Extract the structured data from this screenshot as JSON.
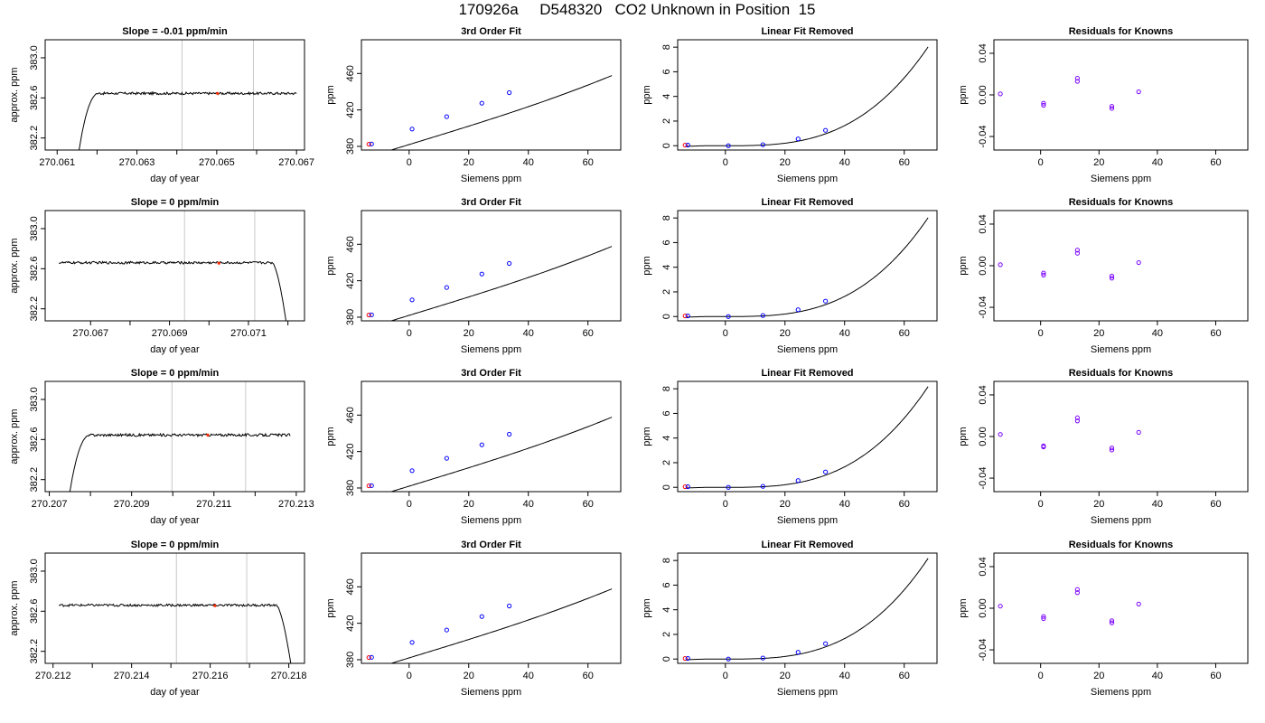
{
  "page_title": "170926a     D548320   CO2 Unknown in Position  15",
  "colors": {
    "line": "#000000",
    "grid": "#c8c8c8",
    "unknown": "#ff2a00",
    "std_a": "#0000ff",
    "std_b": "#ff0000",
    "resid": "#7a00ff"
  },
  "chart_data": [
    {
      "type": "line",
      "row": 0,
      "col": 0,
      "title": "Slope =  -0.01  ppm/min",
      "xlabel": "day of year",
      "ylabel": "approx. ppm",
      "xlim": [
        270.0607,
        270.0672
      ],
      "ylim": [
        382.08,
        383.18
      ],
      "xticks": [
        270.061,
        270.063,
        270.065,
        270.067
      ],
      "xtick_labels": [
        "270.061",
        "270.063",
        "270.065",
        "270.067"
      ],
      "xticks_minor": [
        270.062,
        270.064,
        270.066
      ],
      "yticks": [
        382.2,
        382.6,
        383.0
      ],
      "ytick_labels": [
        "382.2",
        "382.6",
        "383.0"
      ],
      "vlines": [
        270.06413,
        270.06592
      ],
      "trace": {
        "start": 270.06155,
        "rise_end": 270.06205,
        "end": 270.067,
        "start_val": 382.08,
        "level": 382.645,
        "noise": 0.012,
        "tail": "rise"
      },
      "highlight_point": {
        "x": 270.06502,
        "y": 382.645
      }
    },
    {
      "type": "line",
      "row": 1,
      "col": 0,
      "title": "Slope =  0  ppm/min",
      "xlabel": "day of year",
      "ylabel": "approx. ppm",
      "xlim": [
        270.06585,
        270.07242
      ],
      "ylim": [
        382.08,
        383.18
      ],
      "xticks": [
        270.067,
        270.069,
        270.071
      ],
      "xtick_labels": [
        "270.067",
        "270.069",
        "270.071"
      ],
      "xticks_minor": [
        270.068,
        270.07,
        270.072
      ],
      "yticks": [
        382.2,
        382.6,
        383.0
      ],
      "ytick_labels": [
        "382.2",
        "382.6",
        "383.0"
      ],
      "vlines": [
        270.06938,
        270.07116
      ],
      "trace": {
        "start": 270.0662,
        "end": 270.07195,
        "fall_start": 270.0716,
        "end_val": 382.08,
        "level": 382.66,
        "noise": 0.012,
        "tail": "fall"
      },
      "highlight_point": {
        "x": 270.07025,
        "y": 382.655
      }
    },
    {
      "type": "line",
      "row": 2,
      "col": 0,
      "title": "Slope =  0  ppm/min",
      "xlabel": "day of year",
      "ylabel": "approx. ppm",
      "xlim": [
        270.2069,
        270.2132
      ],
      "ylim": [
        382.08,
        383.18
      ],
      "xticks": [
        270.207,
        270.209,
        270.211,
        270.213
      ],
      "xtick_labels": [
        "270.207",
        "270.209",
        "270.211",
        "270.213"
      ],
      "xticks_minor": [
        270.208,
        270.21,
        270.212
      ],
      "yticks": [
        382.2,
        382.6,
        383.0
      ],
      "ytick_labels": [
        "382.2",
        "382.6",
        "383.0"
      ],
      "vlines": [
        270.20998,
        270.21177
      ],
      "trace": {
        "start": 270.2075,
        "rise_end": 270.208,
        "end": 270.21285,
        "start_val": 382.08,
        "level": 382.645,
        "noise": 0.013,
        "tail": "rise"
      },
      "highlight_point": {
        "x": 270.21085,
        "y": 382.645
      }
    },
    {
      "type": "line",
      "row": 3,
      "col": 0,
      "title": "Slope =  0  ppm/min",
      "xlabel": "day of year",
      "ylabel": "approx. ppm",
      "xlim": [
        270.2118,
        270.2184
      ],
      "ylim": [
        382.08,
        383.18
      ],
      "xticks": [
        270.212,
        270.214,
        270.216,
        270.218
      ],
      "xtick_labels": [
        "270.212",
        "270.214",
        "270.216",
        "270.218"
      ],
      "xticks_minor": [
        270.213,
        270.215,
        270.217
      ],
      "yticks": [
        382.2,
        382.6,
        383.0
      ],
      "ytick_labels": [
        "382.2",
        "382.6",
        "383.0"
      ],
      "vlines": [
        270.21514,
        270.21693
      ],
      "trace": {
        "start": 270.21215,
        "end": 270.21805,
        "fall_start": 270.21768,
        "end_val": 382.08,
        "level": 382.66,
        "noise": 0.012,
        "tail": "fall"
      },
      "highlight_point": {
        "x": 270.21612,
        "y": 382.655
      }
    },
    {
      "type": "scatter",
      "row": 0,
      "col": 1,
      "title": "3rd Order Fit",
      "xlabel": "Siemens ppm",
      "ylabel": "ppm",
      "xlim": [
        -16,
        71
      ],
      "ylim": [
        376,
        497
      ],
      "xticks": [
        0,
        20,
        40,
        60
      ],
      "yticks": [
        380,
        420,
        460
      ],
      "curve": {
        "type": "cubic",
        "x0": -14,
        "x1": 68,
        "a": 382.0,
        "b": 1.0,
        "c": 0.0,
        "d": 2.45e-05
      },
      "points": [
        {
          "x": -13.5,
          "y": 382.4,
          "c": "std_b"
        },
        {
          "x": -12.6,
          "y": 382.6,
          "c": "std_a"
        },
        {
          "x": 1.0,
          "y": 399.0,
          "c": "std_a"
        },
        {
          "x": 12.6,
          "y": 412.6,
          "c": "std_a"
        },
        {
          "x": 24.4,
          "y": 427.4,
          "c": "std_a"
        },
        {
          "x": 33.6,
          "y": 439.0,
          "c": "std_a"
        }
      ]
    },
    {
      "type": "scatter",
      "row": 1,
      "col": 1,
      "title": "3rd Order Fit",
      "xlabel": "Siemens ppm",
      "ylabel": "ppm",
      "xlim": [
        -16,
        71
      ],
      "ylim": [
        376,
        497
      ],
      "xticks": [
        0,
        20,
        40,
        60
      ],
      "yticks": [
        380,
        420,
        460
      ],
      "curve": {
        "type": "cubic",
        "x0": -14,
        "x1": 68,
        "a": 382.0,
        "b": 1.0,
        "c": 0.0,
        "d": 2.45e-05
      },
      "points": [
        {
          "x": -13.5,
          "y": 382.4,
          "c": "std_b"
        },
        {
          "x": -12.6,
          "y": 382.6,
          "c": "std_a"
        },
        {
          "x": 1.0,
          "y": 399.0,
          "c": "std_a"
        },
        {
          "x": 12.6,
          "y": 412.6,
          "c": "std_a"
        },
        {
          "x": 24.4,
          "y": 427.4,
          "c": "std_a"
        },
        {
          "x": 33.6,
          "y": 439.0,
          "c": "std_a"
        }
      ]
    },
    {
      "type": "scatter",
      "row": 2,
      "col": 1,
      "title": "3rd Order Fit",
      "xlabel": "Siemens ppm",
      "ylabel": "ppm",
      "xlim": [
        -16,
        71
      ],
      "ylim": [
        376,
        497
      ],
      "xticks": [
        0,
        20,
        40,
        60
      ],
      "yticks": [
        380,
        420,
        460
      ],
      "curve": {
        "type": "cubic",
        "x0": -14,
        "x1": 68,
        "a": 382.0,
        "b": 1.0,
        "c": 0.0,
        "d": 2.45e-05
      },
      "points": [
        {
          "x": -13.5,
          "y": 382.4,
          "c": "std_b"
        },
        {
          "x": -12.6,
          "y": 382.6,
          "c": "std_a"
        },
        {
          "x": 1.0,
          "y": 399.0,
          "c": "std_a"
        },
        {
          "x": 12.6,
          "y": 412.6,
          "c": "std_a"
        },
        {
          "x": 24.4,
          "y": 427.4,
          "c": "std_a"
        },
        {
          "x": 33.6,
          "y": 439.0,
          "c": "std_a"
        }
      ]
    },
    {
      "type": "scatter",
      "row": 3,
      "col": 1,
      "title": "3rd Order Fit",
      "xlabel": "Siemens ppm",
      "ylabel": "ppm",
      "xlim": [
        -16,
        71
      ],
      "ylim": [
        376,
        497
      ],
      "xticks": [
        0,
        20,
        40,
        60
      ],
      "yticks": [
        380,
        420,
        460
      ],
      "curve": {
        "type": "cubic",
        "x0": -14,
        "x1": 68,
        "a": 382.0,
        "b": 1.0,
        "c": 0.0,
        "d": 2.45e-05
      },
      "points": [
        {
          "x": -13.5,
          "y": 382.4,
          "c": "std_b"
        },
        {
          "x": -12.6,
          "y": 382.6,
          "c": "std_a"
        },
        {
          "x": 1.0,
          "y": 399.0,
          "c": "std_a"
        },
        {
          "x": 12.6,
          "y": 412.6,
          "c": "std_a"
        },
        {
          "x": 24.4,
          "y": 427.4,
          "c": "std_a"
        },
        {
          "x": 33.6,
          "y": 439.0,
          "c": "std_a"
        }
      ]
    },
    {
      "type": "scatter",
      "row": 0,
      "col": 2,
      "title": "Linear Fit Removed",
      "xlabel": "Siemens ppm",
      "ylabel": "ppm",
      "xlim": [
        -16,
        71
      ],
      "ylim": [
        -0.35,
        8.6
      ],
      "xticks": [
        0,
        20,
        40,
        60
      ],
      "yticks": [
        0,
        2,
        4,
        6,
        8
      ],
      "curve": {
        "type": "cubic",
        "x0": -13,
        "x1": 68,
        "a": 0.0,
        "b": 0.0,
        "c": 0.0,
        "d": 2.55e-05
      },
      "points": [
        {
          "x": -13.5,
          "y": 0.05,
          "c": "std_b"
        },
        {
          "x": -12.6,
          "y": 0.05,
          "c": "std_a"
        },
        {
          "x": 1.0,
          "y": 0.0,
          "c": "std_a"
        },
        {
          "x": 12.6,
          "y": 0.08,
          "c": "std_a"
        },
        {
          "x": 24.4,
          "y": 0.55,
          "c": "std_a"
        },
        {
          "x": 33.6,
          "y": 1.25,
          "c": "std_a"
        }
      ]
    },
    {
      "type": "scatter",
      "row": 1,
      "col": 2,
      "title": "Linear Fit Removed",
      "xlabel": "Siemens ppm",
      "ylabel": "ppm",
      "xlim": [
        -16,
        71
      ],
      "ylim": [
        -0.35,
        8.6
      ],
      "xticks": [
        0,
        20,
        40,
        60
      ],
      "yticks": [
        0,
        2,
        4,
        6,
        8
      ],
      "curve": {
        "type": "cubic",
        "x0": -13,
        "x1": 68,
        "a": 0.0,
        "b": 0.0,
        "c": 0.0,
        "d": 2.55e-05
      },
      "points": [
        {
          "x": -13.5,
          "y": 0.05,
          "c": "std_b"
        },
        {
          "x": -12.6,
          "y": 0.05,
          "c": "std_a"
        },
        {
          "x": 1.0,
          "y": 0.0,
          "c": "std_a"
        },
        {
          "x": 12.6,
          "y": 0.08,
          "c": "std_a"
        },
        {
          "x": 24.4,
          "y": 0.55,
          "c": "std_a"
        },
        {
          "x": 33.6,
          "y": 1.25,
          "c": "std_a"
        }
      ]
    },
    {
      "type": "scatter",
      "row": 2,
      "col": 2,
      "title": "Linear Fit Removed",
      "xlabel": "Siemens ppm",
      "ylabel": "ppm",
      "xlim": [
        -16,
        71
      ],
      "ylim": [
        -0.35,
        8.6
      ],
      "xticks": [
        0,
        20,
        40,
        60
      ],
      "yticks": [
        0,
        2,
        4,
        6,
        8
      ],
      "curve": {
        "type": "cubic",
        "x0": -13,
        "x1": 68,
        "a": 0.0,
        "b": 0.0,
        "c": 0.0,
        "d": 2.6e-05
      },
      "points": [
        {
          "x": -13.5,
          "y": 0.05,
          "c": "std_b"
        },
        {
          "x": -12.6,
          "y": 0.05,
          "c": "std_a"
        },
        {
          "x": 1.0,
          "y": 0.0,
          "c": "std_a"
        },
        {
          "x": 12.6,
          "y": 0.08,
          "c": "std_a"
        },
        {
          "x": 24.4,
          "y": 0.55,
          "c": "std_a"
        },
        {
          "x": 33.6,
          "y": 1.25,
          "c": "std_a"
        }
      ]
    },
    {
      "type": "scatter",
      "row": 3,
      "col": 2,
      "title": "Linear Fit Removed",
      "xlabel": "Siemens ppm",
      "ylabel": "ppm",
      "xlim": [
        -16,
        71
      ],
      "ylim": [
        -0.35,
        8.6
      ],
      "xticks": [
        0,
        20,
        40,
        60
      ],
      "yticks": [
        0,
        2,
        4,
        6,
        8
      ],
      "curve": {
        "type": "cubic",
        "x0": -13,
        "x1": 68,
        "a": 0.0,
        "b": 0.0,
        "c": 0.0,
        "d": 2.6e-05
      },
      "points": [
        {
          "x": -13.5,
          "y": 0.05,
          "c": "std_b"
        },
        {
          "x": -12.6,
          "y": 0.05,
          "c": "std_a"
        },
        {
          "x": 1.0,
          "y": 0.0,
          "c": "std_a"
        },
        {
          "x": 12.6,
          "y": 0.08,
          "c": "std_a"
        },
        {
          "x": 24.4,
          "y": 0.55,
          "c": "std_a"
        },
        {
          "x": 33.6,
          "y": 1.25,
          "c": "std_a"
        }
      ]
    },
    {
      "type": "scatter",
      "row": 0,
      "col": 3,
      "title": "Residuals for Knowns",
      "xlabel": "Siemens ppm",
      "ylabel": "ppm",
      "xlim": [
        -16,
        71
      ],
      "ylim": [
        -0.053,
        0.053
      ],
      "xticks": [
        0,
        20,
        40,
        60
      ],
      "yticks": [
        -0.04,
        0.0,
        0.04
      ],
      "ytick_labels": [
        "-0.04",
        "0.00",
        "0.04"
      ],
      "points": [
        {
          "x": -13.8,
          "y": 0.001,
          "c": "resid"
        },
        {
          "x": 1.0,
          "y": -0.01,
          "c": "resid"
        },
        {
          "x": 1.0,
          "y": -0.008,
          "c": "resid"
        },
        {
          "x": 12.6,
          "y": 0.013,
          "c": "resid"
        },
        {
          "x": 12.6,
          "y": 0.016,
          "c": "resid"
        },
        {
          "x": 24.4,
          "y": -0.013,
          "c": "resid"
        },
        {
          "x": 24.4,
          "y": -0.011,
          "c": "resid"
        },
        {
          "x": 33.6,
          "y": 0.003,
          "c": "resid"
        }
      ]
    },
    {
      "type": "scatter",
      "row": 1,
      "col": 3,
      "title": "Residuals for Knowns",
      "xlabel": "Siemens ppm",
      "ylabel": "ppm",
      "xlim": [
        -16,
        71
      ],
      "ylim": [
        -0.053,
        0.053
      ],
      "xticks": [
        0,
        20,
        40,
        60
      ],
      "yticks": [
        -0.04,
        0.0,
        0.04
      ],
      "ytick_labels": [
        "-0.04",
        "0.00",
        "0.04"
      ],
      "points": [
        {
          "x": -13.8,
          "y": 0.001,
          "c": "resid"
        },
        {
          "x": 1.0,
          "y": -0.009,
          "c": "resid"
        },
        {
          "x": 1.0,
          "y": -0.007,
          "c": "resid"
        },
        {
          "x": 12.6,
          "y": 0.012,
          "c": "resid"
        },
        {
          "x": 12.6,
          "y": 0.015,
          "c": "resid"
        },
        {
          "x": 24.4,
          "y": -0.012,
          "c": "resid"
        },
        {
          "x": 24.4,
          "y": -0.01,
          "c": "resid"
        },
        {
          "x": 33.6,
          "y": 0.003,
          "c": "resid"
        }
      ]
    },
    {
      "type": "scatter",
      "row": 2,
      "col": 3,
      "title": "Residuals for Knowns",
      "xlabel": "Siemens ppm",
      "ylabel": "ppm",
      "xlim": [
        -16,
        71
      ],
      "ylim": [
        -0.053,
        0.053
      ],
      "xticks": [
        0,
        20,
        40,
        60
      ],
      "yticks": [
        -0.04,
        0.0,
        0.04
      ],
      "ytick_labels": [
        "-0.04",
        "0.00",
        "0.04"
      ],
      "points": [
        {
          "x": -13.8,
          "y": 0.002,
          "c": "resid"
        },
        {
          "x": 1.0,
          "y": -0.01,
          "c": "resid"
        },
        {
          "x": 1.0,
          "y": -0.009,
          "c": "resid"
        },
        {
          "x": 12.6,
          "y": 0.015,
          "c": "resid"
        },
        {
          "x": 12.6,
          "y": 0.018,
          "c": "resid"
        },
        {
          "x": 24.4,
          "y": -0.013,
          "c": "resid"
        },
        {
          "x": 24.4,
          "y": -0.011,
          "c": "resid"
        },
        {
          "x": 33.6,
          "y": 0.004,
          "c": "resid"
        }
      ]
    },
    {
      "type": "scatter",
      "row": 3,
      "col": 3,
      "title": "Residuals for Knowns",
      "xlabel": "Siemens ppm",
      "ylabel": "ppm",
      "xlim": [
        -16,
        71
      ],
      "ylim": [
        -0.053,
        0.053
      ],
      "xticks": [
        0,
        20,
        40,
        60
      ],
      "yticks": [
        -0.04,
        0.0,
        0.04
      ],
      "ytick_labels": [
        "-0.04",
        "0.00",
        "0.04"
      ],
      "points": [
        {
          "x": -13.8,
          "y": 0.002,
          "c": "resid"
        },
        {
          "x": 1.0,
          "y": -0.01,
          "c": "resid"
        },
        {
          "x": 1.0,
          "y": -0.008,
          "c": "resid"
        },
        {
          "x": 12.6,
          "y": 0.015,
          "c": "resid"
        },
        {
          "x": 12.6,
          "y": 0.018,
          "c": "resid"
        },
        {
          "x": 24.4,
          "y": -0.014,
          "c": "resid"
        },
        {
          "x": 24.4,
          "y": -0.012,
          "c": "resid"
        },
        {
          "x": 33.6,
          "y": 0.004,
          "c": "resid"
        }
      ]
    }
  ]
}
